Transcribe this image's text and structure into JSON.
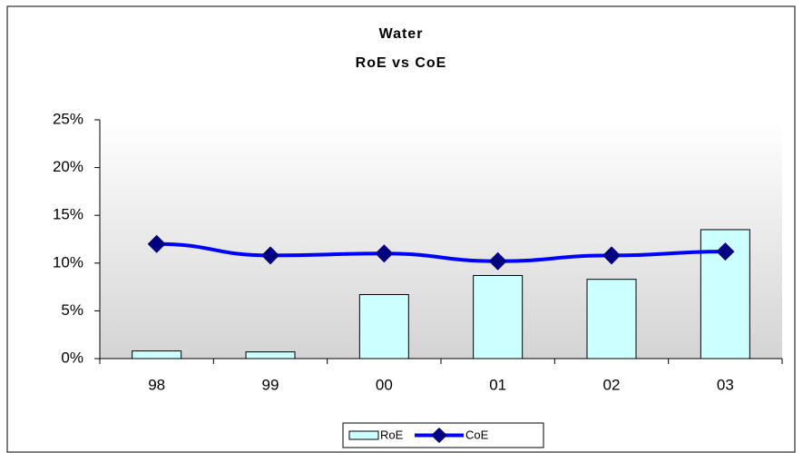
{
  "chart_data": {
    "type": "combo",
    "title": [
      "Water",
      "RoE vs CoE"
    ],
    "categories": [
      "98",
      "99",
      "00",
      "01",
      "02",
      "03"
    ],
    "series": [
      {
        "name": "RoE",
        "type": "bar",
        "color": "#ccffff",
        "values": [
          0.8,
          0.7,
          6.7,
          8.7,
          8.3,
          13.5
        ]
      },
      {
        "name": "CoE",
        "type": "line",
        "color": "#0000ff",
        "marker_color": "#000080",
        "values": [
          12.0,
          10.8,
          11.0,
          10.2,
          10.8,
          11.2
        ]
      }
    ],
    "ylim": [
      0,
      25
    ],
    "yticks": [
      {
        "value": 0,
        "label": "0%"
      },
      {
        "value": 5,
        "label": "5%"
      },
      {
        "value": 10,
        "label": "10%"
      },
      {
        "value": 15,
        "label": "15%"
      },
      {
        "value": 20,
        "label": "20%"
      },
      {
        "value": 25,
        "label": "25%"
      }
    ],
    "legend": "bottom"
  }
}
